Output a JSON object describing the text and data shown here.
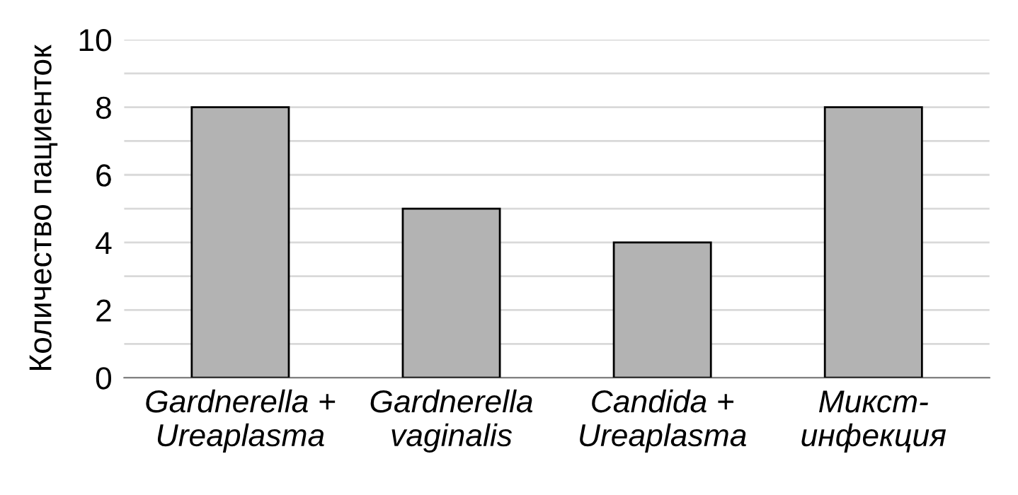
{
  "chart_data": {
    "type": "bar",
    "ylabel": "Количество пациенток",
    "categories": [
      "Gardnerella +\nUreaplasma",
      "Gardnerella\nvaginalis",
      "Candida +\nUreaplasma",
      "Микст-\nинфекция"
    ],
    "values": [
      8,
      5,
      4,
      8
    ],
    "color": "#b3b3b3",
    "ylim": [
      0,
      10
    ],
    "yticks": [
      0,
      {
        "value": 1,
        "label": null
      },
      2,
      {
        "value": 3,
        "label": null
      },
      4,
      {
        "value": 5,
        "label": null
      },
      6,
      {
        "value": 7,
        "label": null
      },
      8,
      {
        "value": 9,
        "label": null
      },
      10
    ],
    "grid": "y"
  }
}
